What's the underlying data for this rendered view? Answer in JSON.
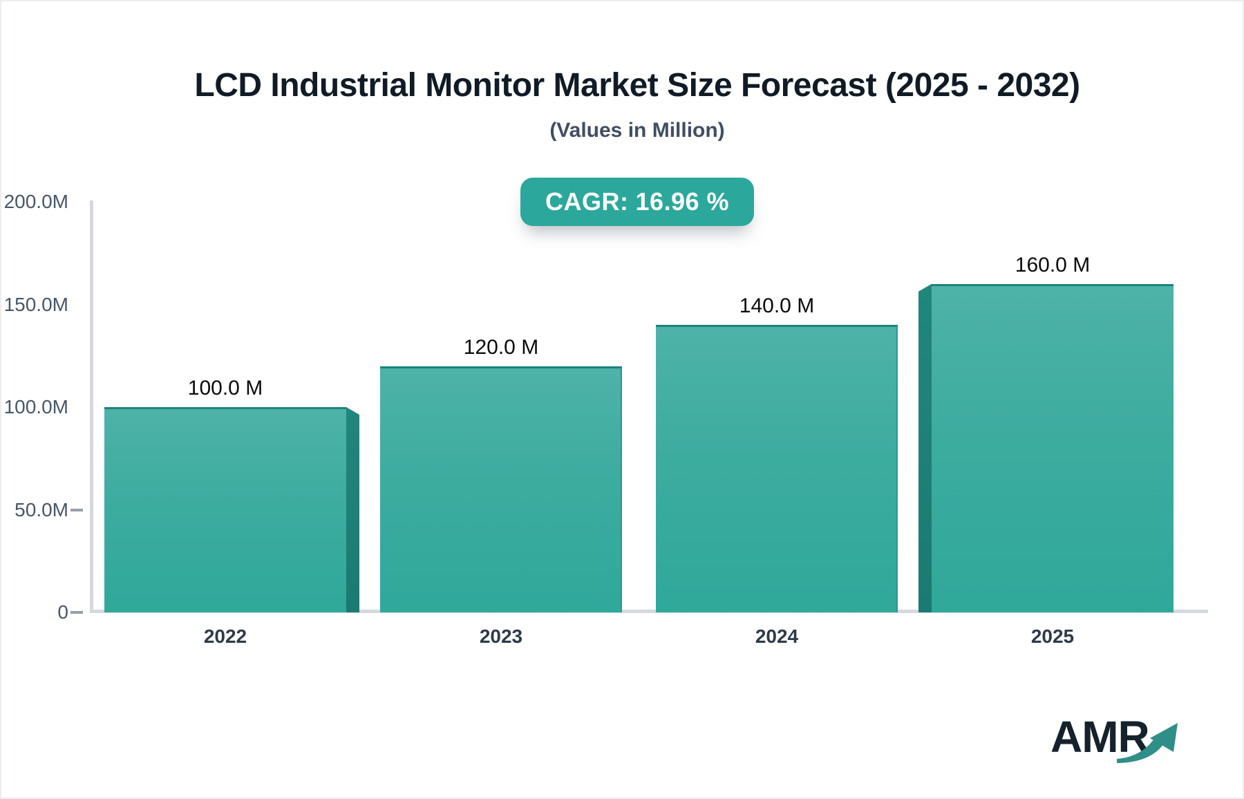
{
  "header": {
    "title": "LCD Industrial Monitor Market Size Forecast (2025 - 2032)",
    "subtitle": "(Values in Million)",
    "cagr_label": "CAGR:",
    "cagr_value": "16.96 %"
  },
  "chart_data": {
    "type": "bar",
    "title": "LCD Industrial Monitor Market Size Forecast (2025 - 2032)",
    "subtitle": "(Values in Million)",
    "unit": "Million",
    "categories": [
      "2022",
      "2023",
      "2024",
      "2025"
    ],
    "values": [
      100,
      120,
      140,
      160
    ],
    "value_labels": [
      "100.0 M",
      "120.0 M",
      "140.0 M",
      "160.0 M"
    ],
    "cagr_percent": 16.96,
    "ylim": [
      0,
      200
    ],
    "y_ticks": [
      {
        "value": 200,
        "label": "200.0M"
      },
      {
        "value": 150,
        "label": "150.0M"
      },
      {
        "value": 100,
        "label": "100.0M"
      },
      {
        "value": 50,
        "label": "50.0M"
      },
      {
        "value": 0,
        "label": "0"
      }
    ],
    "grid": false,
    "legend": false,
    "xlabel": "",
    "ylabel": ""
  },
  "colors": {
    "badge_bg": "#2ba89b",
    "bar_top": "#4eb2a8",
    "bar_bottom": "#2fa89a",
    "bar_border": "#1a837a",
    "bar_side": "#1e7e75",
    "axis": "#d5d8de",
    "arrow": "#2f8e88"
  },
  "branding": {
    "logo_text": "AMR"
  }
}
